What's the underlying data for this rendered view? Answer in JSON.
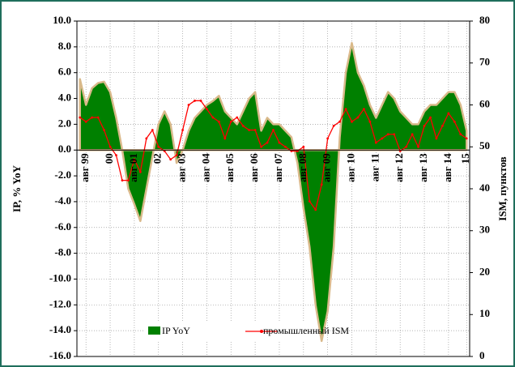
{
  "chart_data": {
    "type": "area-line",
    "y_axis_label": "IP, % YoY",
    "y2_axis_label": "ISM, пунктов",
    "categories": [
      null,
      "авг 99",
      null,
      null,
      null,
      "00",
      null,
      null,
      null,
      "авг 01",
      null,
      null,
      null,
      "02",
      null,
      null,
      null,
      "авг 03",
      null,
      null,
      null,
      "авг 04",
      null,
      null,
      null,
      "авг 05",
      null,
      null,
      null,
      "авг 06",
      null,
      null,
      null,
      "авг 07",
      null,
      null,
      null,
      "авг 08",
      null,
      null,
      null,
      "авг 09",
      null,
      null,
      null,
      "авг 10",
      null,
      null,
      null,
      "авг 11",
      null,
      null,
      null,
      "авг 12",
      null,
      null,
      null,
      "авг 13",
      null,
      null,
      null,
      "авг 14",
      null,
      null,
      "15"
    ],
    "series": [
      {
        "name": "IP YoY",
        "color": "#008000",
        "edge": "#d9b98a",
        "values": [
          5.5,
          3.5,
          4.8,
          5.2,
          5.3,
          4.5,
          2.5,
          0.0,
          -3.0,
          -4.2,
          -5.5,
          -3.0,
          -0.5,
          2.0,
          3.0,
          2.0,
          -1.0,
          0.0,
          1.5,
          2.5,
          3.0,
          3.5,
          3.8,
          4.2,
          3.0,
          2.5,
          2.0,
          3.0,
          4.0,
          4.5,
          1.5,
          2.5,
          2.0,
          2.0,
          1.5,
          1.0,
          -1.0,
          -4.5,
          -7.5,
          -12.0,
          -14.8,
          -12.5,
          -7.5,
          1.0,
          6.0,
          8.3,
          6.0,
          5.0,
          3.5,
          2.5,
          3.5,
          4.5,
          4.0,
          3.0,
          2.5,
          2.0,
          2.0,
          3.0,
          3.5,
          3.5,
          4.0,
          4.5,
          4.5,
          3.5,
          1.5
        ]
      },
      {
        "name": "промышленный ISM",
        "color": "#ff0000",
        "axis": "y2",
        "values": [
          57,
          56,
          57,
          57,
          54,
          50,
          48,
          42,
          42,
          47,
          44,
          52,
          54,
          50,
          49,
          47,
          48,
          54,
          60,
          61,
          61,
          59,
          57,
          56,
          52,
          56,
          57,
          55,
          54,
          54,
          50,
          51,
          54,
          51,
          50,
          49,
          49,
          50,
          37,
          35,
          41,
          52,
          55,
          56,
          59,
          56,
          57,
          59,
          56,
          51,
          52,
          53,
          53,
          49,
          50,
          53,
          50,
          55,
          57,
          52,
          55,
          58,
          56,
          53,
          52
        ]
      }
    ],
    "ylim": [
      -16,
      10
    ],
    "yticks": [
      {
        "value": -16,
        "label": "-16.0"
      },
      {
        "value": -14,
        "label": "-14.0"
      },
      {
        "value": -12,
        "label": "-12.0"
      },
      {
        "value": -10,
        "label": "-10.0"
      },
      {
        "value": -8,
        "label": "-8.0"
      },
      {
        "value": -6,
        "label": "-6.0"
      },
      {
        "value": -4,
        "label": "-4.0"
      },
      {
        "value": -2,
        "label": "-2.0"
      },
      {
        "value": 0,
        "label": "0.0"
      },
      {
        "value": 2,
        "label": "2.0"
      },
      {
        "value": 4,
        "label": "4.0"
      },
      {
        "value": 6,
        "label": "6.0"
      },
      {
        "value": 8,
        "label": "8.0"
      },
      {
        "value": 10,
        "label": "10.0"
      }
    ],
    "y2lim": [
      0,
      80
    ],
    "y2ticks": [
      0,
      10,
      20,
      30,
      40,
      50,
      60,
      70,
      80
    ],
    "grid": true
  }
}
